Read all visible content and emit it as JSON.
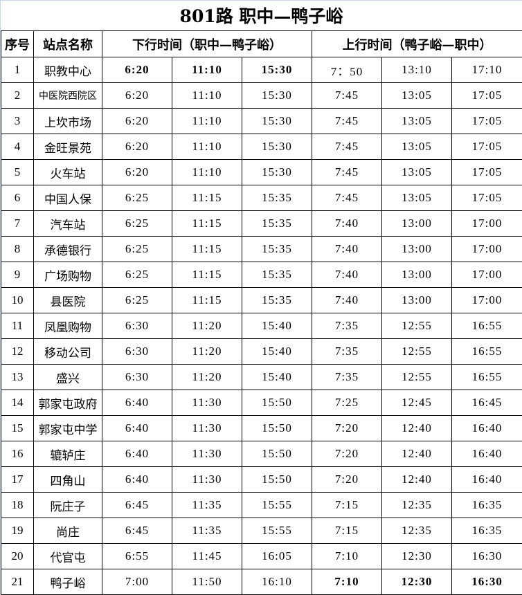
{
  "title": "801路  职中—鸭子峪",
  "headers": {
    "seq": "序号",
    "station": "站点名称",
    "down": "下行时间（职中—鸭子峪）",
    "up": "上行时间（鸭子峪—职中）"
  },
  "rows": [
    {
      "no": "1",
      "name": "职教中心",
      "down": [
        "6:20",
        "11:10",
        "15:30"
      ],
      "up": [
        "7：50",
        "13:10",
        "17:10"
      ],
      "bold_down": true
    },
    {
      "no": "2",
      "name": "中医院西院区",
      "down": [
        "6:20",
        "11:10",
        "15:30"
      ],
      "up": [
        "7:45",
        "13:05",
        "17:05"
      ]
    },
    {
      "no": "3",
      "name": "上坎市场",
      "down": [
        "6:20",
        "11:10",
        "15:30"
      ],
      "up": [
        "7:45",
        "13:05",
        "17:05"
      ]
    },
    {
      "no": "4",
      "name": "金旺景苑",
      "down": [
        "6:20",
        "11:10",
        "15:30"
      ],
      "up": [
        "7:45",
        "13:05",
        "17:05"
      ]
    },
    {
      "no": "5",
      "name": "火车站",
      "down": [
        "6:20",
        "11:10",
        "15:30"
      ],
      "up": [
        "7:45",
        "13:05",
        "17:05"
      ]
    },
    {
      "no": "6",
      "name": "中国人保",
      "down": [
        "6:25",
        "11:15",
        "15:35"
      ],
      "up": [
        "7:45",
        "13:05",
        "17:05"
      ]
    },
    {
      "no": "7",
      "name": "汽车站",
      "down": [
        "6:25",
        "11:15",
        "15:35"
      ],
      "up": [
        "7:40",
        "13:00",
        "17:00"
      ]
    },
    {
      "no": "8",
      "name": "承德银行",
      "down": [
        "6:25",
        "11:15",
        "15:35"
      ],
      "up": [
        "7:40",
        "13:00",
        "17:00"
      ]
    },
    {
      "no": "9",
      "name": "广场购物",
      "down": [
        "6:25",
        "11:15",
        "15:35"
      ],
      "up": [
        "7:40",
        "13:00",
        "17:00"
      ]
    },
    {
      "no": "10",
      "name": "县医院",
      "down": [
        "6:25",
        "11:15",
        "15:35"
      ],
      "up": [
        "7:40",
        "13:00",
        "17:00"
      ]
    },
    {
      "no": "11",
      "name": "凤凰购物",
      "down": [
        "6:30",
        "11:20",
        "15:40"
      ],
      "up": [
        "7:35",
        "12:55",
        "16:55"
      ]
    },
    {
      "no": "12",
      "name": "移动公司",
      "down": [
        "6:30",
        "11:20",
        "15:40"
      ],
      "up": [
        "7:35",
        "12:55",
        "16:55"
      ]
    },
    {
      "no": "13",
      "name": "盛兴",
      "down": [
        "6:30",
        "11:20",
        "15:40"
      ],
      "up": [
        "7:35",
        "12:55",
        "16:55"
      ]
    },
    {
      "no": "14",
      "name": "郭家屯政府",
      "down": [
        "6:40",
        "11:30",
        "15:50"
      ],
      "up": [
        "7:25",
        "12:45",
        "16:45"
      ]
    },
    {
      "no": "15",
      "name": "郭家屯中学",
      "down": [
        "6:40",
        "11:30",
        "15:50"
      ],
      "up": [
        "7:20",
        "12:40",
        "16:40"
      ]
    },
    {
      "no": "16",
      "name": "辘轳庄",
      "down": [
        "6:40",
        "11:30",
        "15:50"
      ],
      "up": [
        "7:20",
        "12:40",
        "16:40"
      ]
    },
    {
      "no": "17",
      "name": "四角山",
      "down": [
        "6:40",
        "11:30",
        "15:50"
      ],
      "up": [
        "7:20",
        "12:40",
        "16:40"
      ]
    },
    {
      "no": "18",
      "name": "阮庄子",
      "down": [
        "6:45",
        "11:35",
        "15:55"
      ],
      "up": [
        "7:15",
        "12:35",
        "16:35"
      ]
    },
    {
      "no": "19",
      "name": "尚庄",
      "down": [
        "6:45",
        "11:35",
        "15:55"
      ],
      "up": [
        "7:15",
        "12:35",
        "16:35"
      ]
    },
    {
      "no": "20",
      "name": "代官屯",
      "down": [
        "6:55",
        "11:45",
        "16:05"
      ],
      "up": [
        "7:10",
        "12:30",
        "16:30"
      ]
    },
    {
      "no": "21",
      "name": "鸭子峪",
      "down": [
        "7:00",
        "11:50",
        "16:10"
      ],
      "up": [
        "7:10",
        "12:30",
        "16:30"
      ],
      "bold_up": true
    }
  ]
}
